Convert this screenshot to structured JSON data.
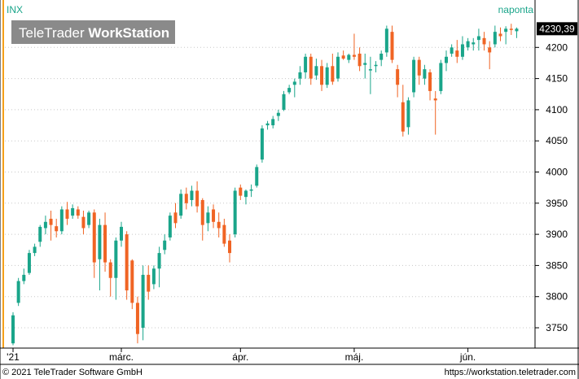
{
  "app": {
    "symbol": "INX",
    "interval": "naponta",
    "watermark": {
      "brand_light": "TeleTrader ",
      "brand_bold": "WorkStation"
    },
    "copyright": "© 2021  TeleTrader Software GmbH",
    "url": "https://workstation.teletrader.com",
    "last_price": "4230,39"
  },
  "colors": {
    "up": "#1aa58a",
    "down": "#f06424",
    "accent": "#f5a01a",
    "grid": "#c8c8c8",
    "text": "#000000"
  },
  "chart_data": {
    "type": "candlestick",
    "ylim": [
      3720,
      4250
    ],
    "y_ticks": [
      3750,
      3800,
      3850,
      3900,
      3950,
      4000,
      4050,
      4100,
      4150,
      4200
    ],
    "x_labels": [
      {
        "label": "'21",
        "index": 0
      },
      {
        "label": "márc.",
        "index": 20
      },
      {
        "label": "ápr.",
        "index": 42
      },
      {
        "label": "máj.",
        "index": 63
      },
      {
        "label": "jún.",
        "index": 84
      }
    ],
    "ohlc": [
      [
        3725,
        3775,
        3722,
        3770
      ],
      [
        3790,
        3830,
        3785,
        3825
      ],
      [
        3825,
        3845,
        3820,
        3835
      ],
      [
        3838,
        3875,
        3835,
        3870
      ],
      [
        3870,
        3885,
        3865,
        3880
      ],
      [
        3888,
        3915,
        3880,
        3912
      ],
      [
        3910,
        3930,
        3900,
        3920
      ],
      [
        3925,
        3938,
        3890,
        3915
      ],
      [
        3913,
        3925,
        3895,
        3905
      ],
      [
        3905,
        3945,
        3900,
        3940
      ],
      [
        3940,
        3952,
        3915,
        3925
      ],
      [
        3930,
        3948,
        3925,
        3942
      ],
      [
        3940,
        3945,
        3925,
        3930
      ],
      [
        3928,
        3938,
        3900,
        3910
      ],
      [
        3915,
        3938,
        3910,
        3935
      ],
      [
        3935,
        3940,
        3830,
        3855
      ],
      [
        3860,
        3925,
        3810,
        3915
      ],
      [
        3915,
        3935,
        3840,
        3855
      ],
      [
        3855,
        3860,
        3800,
        3830
      ],
      [
        3830,
        3895,
        3795,
        3890
      ],
      [
        3890,
        3920,
        3880,
        3912
      ],
      [
        3900,
        3905,
        3795,
        3810
      ],
      [
        3858,
        3860,
        3780,
        3790
      ],
      [
        3790,
        3800,
        3725,
        3740
      ],
      [
        3750,
        3850,
        3730,
        3835
      ],
      [
        3835,
        3850,
        3795,
        3808
      ],
      [
        3820,
        3850,
        3812,
        3845
      ],
      [
        3845,
        3880,
        3815,
        3870
      ],
      [
        3875,
        3900,
        3868,
        3890
      ],
      [
        3895,
        3935,
        3890,
        3930
      ],
      [
        3935,
        3950,
        3910,
        3918
      ],
      [
        3930,
        3972,
        3925,
        3965
      ],
      [
        3965,
        3975,
        3940,
        3950
      ],
      [
        3955,
        3978,
        3945,
        3970
      ],
      [
        3970,
        3985,
        3935,
        3945
      ],
      [
        3955,
        3958,
        3890,
        3915
      ],
      [
        3918,
        3945,
        3905,
        3935
      ],
      [
        3940,
        3948,
        3910,
        3920
      ],
      [
        3920,
        3935,
        3895,
        3910
      ],
      [
        3915,
        3925,
        3880,
        3885
      ],
      [
        3890,
        3900,
        3855,
        3870
      ],
      [
        3900,
        3975,
        3895,
        3970
      ],
      [
        3975,
        3980,
        3955,
        3962
      ],
      [
        3960,
        3972,
        3948,
        3970
      ],
      [
        3970,
        3980,
        3960,
        3972
      ],
      [
        3978,
        4012,
        3975,
        4008
      ],
      [
        4020,
        4075,
        4015,
        4070
      ],
      [
        4075,
        4082,
        4068,
        4078
      ],
      [
        4075,
        4090,
        4070,
        4085
      ],
      [
        4090,
        4100,
        4082,
        4095
      ],
      [
        4100,
        4130,
        4098,
        4125
      ],
      [
        4128,
        4140,
        4125,
        4135
      ],
      [
        4140,
        4150,
        4120,
        4145
      ],
      [
        4150,
        4170,
        4140,
        4160
      ],
      [
        4160,
        4190,
        4150,
        4185
      ],
      [
        4185,
        4190,
        4140,
        4150
      ],
      [
        4155,
        4182,
        4148,
        4170
      ],
      [
        4170,
        4180,
        4130,
        4140
      ],
      [
        4140,
        4175,
        4135,
        4168
      ],
      [
        4170,
        4190,
        4140,
        4145
      ],
      [
        4150,
        4192,
        4145,
        4185
      ],
      [
        4187,
        4195,
        4180,
        4182
      ],
      [
        4180,
        4190,
        4175,
        4188
      ],
      [
        4188,
        4222,
        4180,
        4185
      ],
      [
        4190,
        4200,
        4162,
        4170
      ],
      [
        4172,
        4190,
        4150,
        4175
      ],
      [
        4165,
        4185,
        4125,
        4165
      ],
      [
        4170,
        4178,
        4160,
        4172
      ],
      [
        4180,
        4195,
        4170,
        4190
      ],
      [
        4192,
        4235,
        4185,
        4230
      ],
      [
        4225,
        4235,
        4175,
        4180
      ],
      [
        4165,
        4172,
        4120,
        4140
      ],
      [
        4112,
        4140,
        4057,
        4065
      ],
      [
        4072,
        4120,
        4060,
        4115
      ],
      [
        4128,
        4185,
        4120,
        4180
      ],
      [
        4180,
        4185,
        4140,
        4155
      ],
      [
        4150,
        4172,
        4140,
        4165
      ],
      [
        4160,
        4165,
        4115,
        4130
      ],
      [
        4118,
        4130,
        4060,
        4115
      ],
      [
        4130,
        4180,
        4125,
        4175
      ],
      [
        4175,
        4195,
        4162,
        4185
      ],
      [
        4190,
        4205,
        4185,
        4200
      ],
      [
        4195,
        4212,
        4175,
        4185
      ],
      [
        4185,
        4218,
        4180,
        4205
      ],
      [
        4200,
        4215,
        4195,
        4210
      ],
      [
        4205,
        4215,
        4195,
        4208
      ],
      [
        4212,
        4230,
        4195,
        4218
      ],
      [
        4215,
        4225,
        4195,
        4205
      ],
      [
        4200,
        4210,
        4165,
        4192
      ],
      [
        4205,
        4235,
        4200,
        4225
      ],
      [
        4222,
        4232,
        4210,
        4218
      ],
      [
        4225,
        4234,
        4205,
        4230
      ],
      [
        4230,
        4238,
        4220,
        4228
      ],
      [
        4226,
        4232,
        4215,
        4230
      ]
    ]
  }
}
